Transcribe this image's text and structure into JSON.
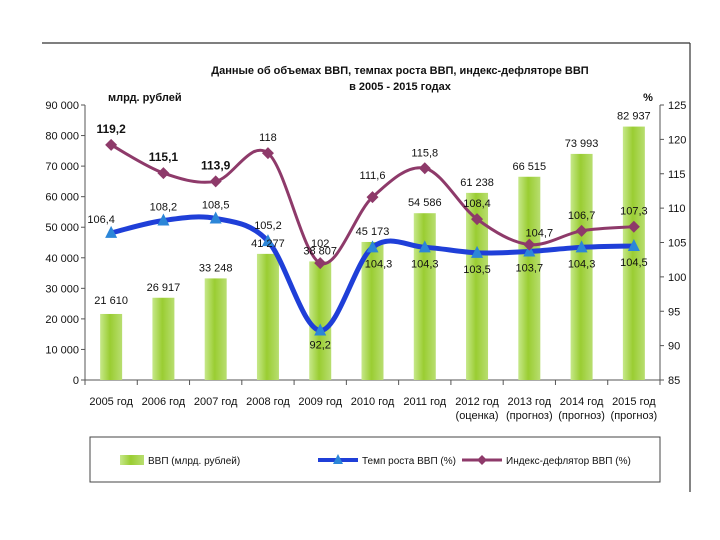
{
  "chart_data": {
    "type": "bar+line",
    "title_line1": "Данные об объемах ВВП, темпах роста ВВП, индекс-дефляторе ВВП",
    "title_line2": "в 2005 - 2015 годах",
    "left_unit": "млрд. рублей",
    "right_unit": "%",
    "categories": [
      [
        "2005 год"
      ],
      [
        "2006 год"
      ],
      [
        "2007 год"
      ],
      [
        "2008 год"
      ],
      [
        "2009 год"
      ],
      [
        "2010 год"
      ],
      [
        "2011 год"
      ],
      [
        "2012 год",
        "(оценка)"
      ],
      [
        "2013 год",
        "(прогноз)"
      ],
      [
        "2014 год",
        "(прогноз)"
      ],
      [
        "2015 год",
        "(прогноз)"
      ]
    ],
    "left_axis": {
      "min": 0,
      "max": 90000,
      "step": 10000,
      "ticks": [
        "0",
        "10 000",
        "20 000",
        "30 000",
        "40 000",
        "50 000",
        "60 000",
        "70 000",
        "80 000",
        "90 000"
      ]
    },
    "right_axis": {
      "min": 85,
      "max": 125,
      "step": 5,
      "ticks": [
        "85",
        "90",
        "95",
        "100",
        "105",
        "110",
        "115",
        "120",
        "125"
      ]
    },
    "series": [
      {
        "name": "ВВП (млрд. рублей)",
        "kind": "bar",
        "axis": "left",
        "color": "#9ACD32",
        "values": [
          21610,
          26917,
          33248,
          41277,
          38807,
          45173,
          54586,
          61238,
          66515,
          73993,
          82937
        ],
        "labels": [
          "21 610",
          "26 917",
          "33 248",
          "41 277",
          "38 807",
          "45 173",
          "54 586",
          "61 238",
          "66 515",
          "73 993",
          "82 937"
        ]
      },
      {
        "name": "Темп роста ВВП (%)",
        "kind": "line",
        "axis": "right",
        "color": "#1F3FD8",
        "values": [
          106.4,
          108.2,
          108.5,
          105.2,
          92.2,
          104.3,
          104.3,
          103.5,
          103.7,
          104.3,
          104.5
        ],
        "labels": [
          "106,4",
          "108,2",
          "108,5",
          "105,2",
          "92,2",
          "104,3",
          "104,3",
          "103,5",
          "103,7",
          "104,3",
          "104,5"
        ]
      },
      {
        "name": "Индекс-дефлятор ВВП (%)",
        "kind": "line",
        "axis": "right",
        "color": "#8E3A6A",
        "values": [
          119.2,
          115.1,
          113.9,
          118,
          102,
          111.6,
          115.8,
          108.4,
          104.7,
          106.7,
          107.3
        ],
        "labels": [
          "119,2",
          "115,1",
          "113,9",
          "118",
          "102",
          "111,6",
          "115,8",
          "108,4",
          "104,7",
          "106,7",
          "107,3"
        ]
      }
    ]
  }
}
